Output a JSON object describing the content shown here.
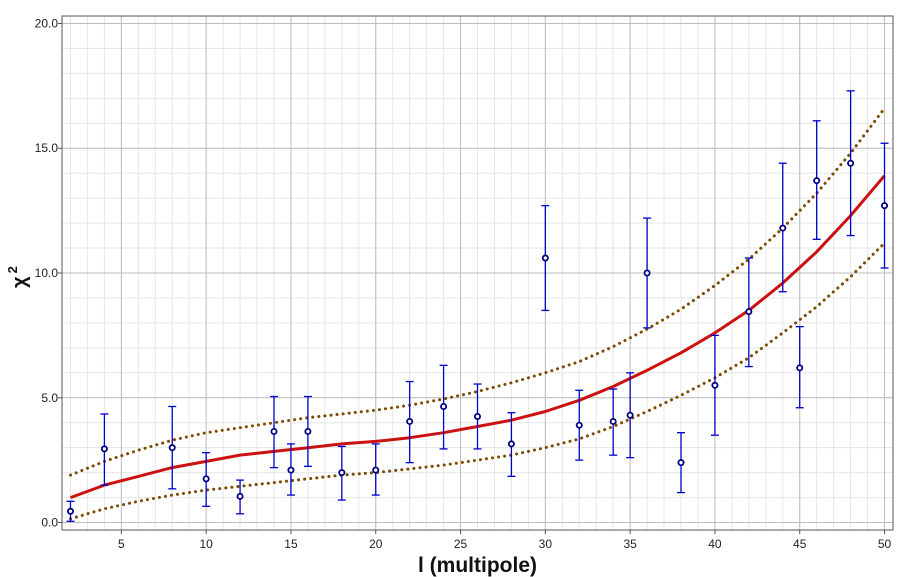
{
  "chart_data": {
    "type": "scatter",
    "title": "",
    "xlabel": "l (multipole)",
    "ylabel": "χ",
    "ylabel_superscript": "2",
    "xlim": [
      1.5,
      50.5
    ],
    "ylim": [
      -0.3,
      20.3
    ],
    "grid": true,
    "x_ticks": [
      5,
      10,
      15,
      20,
      25,
      30,
      35,
      40,
      45,
      50
    ],
    "x_tick_labels": [
      "5",
      "10",
      "15",
      "20",
      "25",
      "30",
      "35",
      "40",
      "45",
      "50"
    ],
    "y_ticks": [
      0,
      5,
      10,
      15,
      20
    ],
    "y_tick_labels": [
      "0.0",
      "5.0",
      "10.0",
      "15.0",
      "20.0"
    ],
    "colors": {
      "points": "#000080",
      "error_bars": "#0000cc",
      "fit": "#cc1111",
      "bounds": "#7a4a00",
      "grid_major": "#bdbdbd",
      "grid_minor": "#e6e6e6"
    },
    "series": [
      {
        "style": "points-with-error-bars",
        "points": [
          {
            "x": 2,
            "y": 0.45,
            "lo": 0.05,
            "hi": 0.85
          },
          {
            "x": 4,
            "y": 2.95,
            "lo": 1.5,
            "hi": 4.35
          },
          {
            "x": 8,
            "y": 3.0,
            "lo": 1.35,
            "hi": 4.65
          },
          {
            "x": 10,
            "y": 1.75,
            "lo": 0.65,
            "hi": 2.8
          },
          {
            "x": 12,
            "y": 1.05,
            "lo": 0.35,
            "hi": 1.7
          },
          {
            "x": 14,
            "y": 3.65,
            "lo": 2.2,
            "hi": 5.05
          },
          {
            "x": 15,
            "y": 2.1,
            "lo": 1.1,
            "hi": 3.15
          },
          {
            "x": 16,
            "y": 3.65,
            "lo": 2.25,
            "hi": 5.05
          },
          {
            "x": 18,
            "y": 2.0,
            "lo": 0.9,
            "hi": 3.05
          },
          {
            "x": 20,
            "y": 2.1,
            "lo": 1.1,
            "hi": 3.15
          },
          {
            "x": 22,
            "y": 4.05,
            "lo": 2.4,
            "hi": 5.65
          },
          {
            "x": 24,
            "y": 4.65,
            "lo": 2.95,
            "hi": 6.3
          },
          {
            "x": 26,
            "y": 4.25,
            "lo": 2.95,
            "hi": 5.55
          },
          {
            "x": 28,
            "y": 3.15,
            "lo": 1.85,
            "hi": 4.4
          },
          {
            "x": 30,
            "y": 10.6,
            "lo": 8.5,
            "hi": 12.7
          },
          {
            "x": 32,
            "y": 3.9,
            "lo": 2.5,
            "hi": 5.3
          },
          {
            "x": 34,
            "y": 4.05,
            "lo": 2.7,
            "hi": 5.35
          },
          {
            "x": 35,
            "y": 4.3,
            "lo": 2.6,
            "hi": 6.0
          },
          {
            "x": 36,
            "y": 10.0,
            "lo": 7.8,
            "hi": 12.2
          },
          {
            "x": 38,
            "y": 2.4,
            "lo": 1.2,
            "hi": 3.6
          },
          {
            "x": 40,
            "y": 5.5,
            "lo": 3.5,
            "hi": 7.5
          },
          {
            "x": 42,
            "y": 8.45,
            "lo": 6.25,
            "hi": 10.6
          },
          {
            "x": 44,
            "y": 11.8,
            "lo": 9.25,
            "hi": 14.4
          },
          {
            "x": 45,
            "y": 6.2,
            "lo": 4.6,
            "hi": 7.85
          },
          {
            "x": 46,
            "y": 13.7,
            "lo": 11.35,
            "hi": 16.1
          },
          {
            "x": 48,
            "y": 14.4,
            "lo": 11.5,
            "hi": 17.3
          },
          {
            "x": 50,
            "y": 12.7,
            "lo": 10.2,
            "hi": 15.2
          }
        ]
      },
      {
        "style": "fit-line",
        "x": [
          2,
          4,
          6,
          8,
          10,
          12,
          14,
          16,
          18,
          20,
          22,
          24,
          26,
          28,
          30,
          32,
          34,
          36,
          38,
          40,
          42,
          44,
          46,
          48,
          50
        ],
        "y": [
          1.0,
          1.5,
          1.85,
          2.2,
          2.45,
          2.7,
          2.85,
          3.0,
          3.15,
          3.25,
          3.4,
          3.6,
          3.85,
          4.1,
          4.45,
          4.9,
          5.45,
          6.1,
          6.8,
          7.6,
          8.5,
          9.6,
          10.85,
          12.3,
          13.9
        ]
      },
      {
        "style": "upper-bound",
        "x": [
          2,
          4,
          6,
          8,
          10,
          12,
          14,
          16,
          18,
          20,
          22,
          24,
          26,
          28,
          30,
          32,
          34,
          36,
          38,
          40,
          42,
          44,
          46,
          48,
          50
        ],
        "y": [
          1.9,
          2.45,
          2.9,
          3.3,
          3.6,
          3.8,
          4.0,
          4.2,
          4.35,
          4.5,
          4.7,
          4.95,
          5.25,
          5.6,
          6.0,
          6.45,
          7.05,
          7.75,
          8.55,
          9.5,
          10.55,
          11.8,
          13.2,
          14.8,
          16.6
        ]
      },
      {
        "style": "lower-bound",
        "x": [
          2,
          4,
          6,
          8,
          10,
          12,
          14,
          16,
          18,
          20,
          22,
          24,
          26,
          28,
          30,
          32,
          34,
          36,
          38,
          40,
          42,
          44,
          46,
          48,
          50
        ],
        "y": [
          0.15,
          0.55,
          0.85,
          1.1,
          1.3,
          1.45,
          1.6,
          1.75,
          1.9,
          2.0,
          2.15,
          2.3,
          2.5,
          2.7,
          3.0,
          3.35,
          3.85,
          4.45,
          5.1,
          5.8,
          6.6,
          7.6,
          8.65,
          9.85,
          11.2
        ]
      }
    ]
  }
}
